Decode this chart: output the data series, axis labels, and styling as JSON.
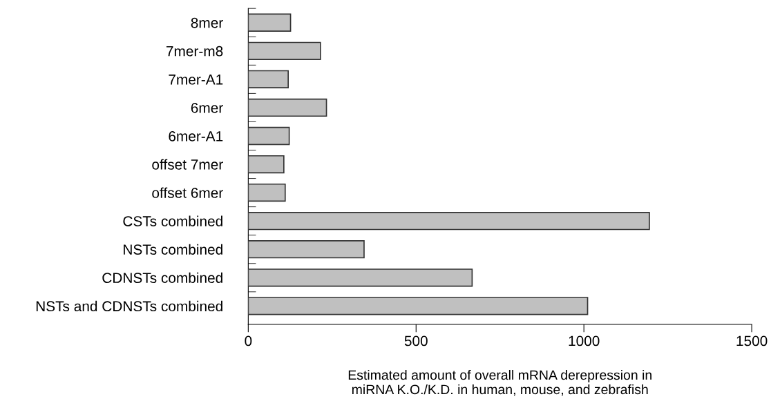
{
  "chart_data": {
    "type": "bar",
    "orientation": "horizontal",
    "categories": [
      "8mer",
      "7mer-m8",
      "7mer-A1",
      "6mer",
      "6mer-A1",
      "offset 7mer",
      "offset 6mer",
      "CSTs combined",
      "NSTs combined",
      "CDNSTs combined",
      "NSTs and CDNSTs combined"
    ],
    "values": [
      126,
      215,
      119,
      233,
      122,
      106,
      110,
      1195,
      345,
      667,
      1011
    ],
    "color": "#c0c0c0",
    "xlim": [
      0,
      1500
    ],
    "xticks": [
      0,
      500,
      1000,
      1500
    ],
    "xlabel": "Estimated amount of overall mRNA derepression in\nmiRNA K.O./K.D. in human, mouse, and zebrafish",
    "grid": false,
    "legend": false
  }
}
